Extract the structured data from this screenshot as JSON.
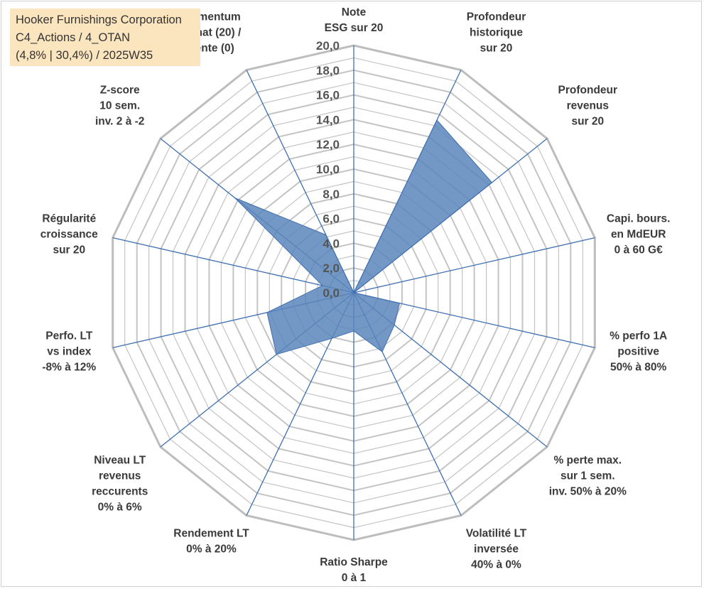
{
  "info": {
    "line1": "Hooker Furnishings Corporation",
    "line2": "C4_Actions / 4_OTAN",
    "line3": "(4,8% | 30,4%) / 2025W35"
  },
  "colors": {
    "fill": "#5b86bb",
    "spoke": "#3f6fb0",
    "ring": "#c4c4c4",
    "ring_outer": "#bdbdbd",
    "label": "#3a3a3a"
  },
  "chart_data": {
    "type": "radar",
    "rmin": 0,
    "rmax": 20,
    "tick_labels": [
      "0,0",
      "2,0",
      "4,0",
      "6,0",
      "8,0",
      "10,0",
      "12,0",
      "14,0",
      "16,0",
      "18,0",
      "20,0"
    ],
    "axes": [
      {
        "label": [
          "Note",
          "ESG sur 20"
        ],
        "value": 0
      },
      {
        "label": [
          "Profondeur",
          "historique",
          "sur 20"
        ],
        "value": 15.5
      },
      {
        "label": [
          "Profondeur",
          "revenus",
          "sur 20"
        ],
        "value": 14.3
      },
      {
        "label": [
          "Capi. bours.",
          "en MdEUR",
          "0 à 60 G€"
        ],
        "value": 0
      },
      {
        "label": [
          "% perfo 1A",
          "positive",
          "50% à 80%"
        ],
        "value": 3.8
      },
      {
        "label": [
          "% perte max.",
          "sur 1 sem.",
          "inv. 50% à 20%"
        ],
        "value": 4.2
      },
      {
        "label": [
          "Volatilité LT",
          "inversée",
          "40% à 0%"
        ],
        "value": 5.3
      },
      {
        "label": [
          "Ratio Sharpe",
          "0 à 1"
        ],
        "value": 3.1
      },
      {
        "label": [
          "Rendement LT",
          "0% à 20%"
        ],
        "value": 4.1
      },
      {
        "label": [
          "Niveau LT",
          "revenus",
          "reccurents",
          "0% à 6%"
        ],
        "value": 8.0
      },
      {
        "label": [
          "Perfo. LT",
          "vs index",
          "-8% à 12%"
        ],
        "value": 7.2
      },
      {
        "label": [
          "Régularité",
          "croissance",
          "sur 20"
        ],
        "value": 2.6
      },
      {
        "label": [
          "Z-score",
          "10 sem.",
          "inv. 2 à -2"
        ],
        "value": 12.3
      },
      {
        "label": [
          "Momentum",
          "Achat (20) /",
          "Vente (0)"
        ],
        "value": 5.2
      }
    ]
  }
}
